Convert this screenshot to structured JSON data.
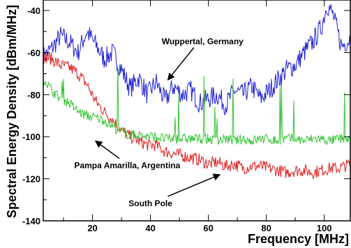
{
  "chart_data": {
    "type": "line",
    "xlabel": "Frequency [MHz]",
    "ylabel": "Spectral Energy Density [dBm/MHz]",
    "xlim": [
      3,
      109
    ],
    "ylim": [
      -140,
      -35
    ],
    "x_ticks": [
      20,
      40,
      60,
      80,
      100
    ],
    "y_ticks": [
      -140,
      -120,
      -100,
      -80,
      -60,
      -40
    ],
    "x_tick_labels": [
      "20",
      "40",
      "60",
      "80",
      "100"
    ],
    "y_tick_labels": [
      "-140",
      "-120",
      "-100",
      "-80",
      "-60",
      "-40"
    ],
    "grid": false,
    "colors": {
      "Wuppertal, Germany": "#1f1fd6",
      "South Pole": "#e01b1b",
      "Pampa Amarilla, Argentina": "#33c433"
    },
    "series": [
      {
        "name": "Wuppertal, Germany",
        "x": [
          3,
          6,
          9,
          12,
          15,
          18,
          21,
          24,
          27,
          30,
          33,
          36,
          39,
          42,
          45,
          48,
          51,
          54,
          57,
          60,
          63,
          66,
          69,
          72,
          75,
          78,
          81,
          84,
          87,
          90,
          93,
          96,
          99,
          101,
          103,
          106,
          109
        ],
        "y": [
          -62,
          -58,
          -52,
          -55,
          -60,
          -50,
          -56,
          -63,
          -60,
          -68,
          -77,
          -72,
          -80,
          -74,
          -83,
          -76,
          -80,
          -78,
          -84,
          -82,
          -80,
          -85,
          -78,
          -80,
          -76,
          -82,
          -78,
          -73,
          -68,
          -66,
          -60,
          -55,
          -48,
          -37,
          -42,
          -57,
          -53
        ]
      },
      {
        "name": "South Pole",
        "x": [
          3,
          6,
          9,
          12,
          15,
          18,
          21,
          24,
          27,
          30,
          33,
          36,
          39,
          42,
          45,
          48,
          51,
          54,
          57,
          60,
          63,
          66,
          69,
          72,
          75,
          78,
          81,
          84,
          87,
          90,
          93,
          96,
          99,
          102,
          105,
          109
        ],
        "y": [
          -62,
          -63,
          -66,
          -67,
          -70,
          -75,
          -83,
          -88,
          -92,
          -97,
          -100,
          -102,
          -104,
          -104,
          -107,
          -108,
          -109,
          -110,
          -111,
          -113,
          -112,
          -114,
          -113,
          -115,
          -114,
          -114,
          -115,
          -116,
          -117,
          -116,
          -116,
          -117,
          -116,
          -115,
          -115,
          -113
        ]
      },
      {
        "name": "Pampa Amarilla, Argentina",
        "x": [
          3,
          6,
          9,
          12,
          15,
          18,
          21,
          24,
          27,
          30,
          33,
          36,
          39,
          42,
          45,
          48,
          51,
          54,
          57,
          60,
          63,
          66,
          69,
          72,
          75,
          78,
          81,
          84,
          87,
          90,
          93,
          96,
          99,
          102,
          105,
          109
        ],
        "y": [
          -72,
          -78,
          -82,
          -84,
          -88,
          -90,
          -91,
          -92,
          -95,
          -98,
          -99,
          -99,
          -100,
          -100,
          -101,
          -101,
          -101,
          -101,
          -101,
          -101,
          -102,
          -101,
          -102,
          -101,
          -102,
          -101,
          -101,
          -102,
          -101,
          -101,
          -102,
          -101,
          -101,
          -102,
          -101,
          -101
        ]
      }
    ],
    "annotations": [
      {
        "text": "Wuppertal, Germany",
        "x": 58,
        "y": -56,
        "arrow_to": [
          46,
          -73
        ]
      },
      {
        "text": "Pampa Amarilla, Argentina",
        "x": 32,
        "y": -115,
        "arrow_to": [
          21,
          -102
        ]
      },
      {
        "text": "South Pole",
        "x": 40,
        "y": -133,
        "arrow_to": [
          64,
          -118
        ]
      }
    ]
  }
}
